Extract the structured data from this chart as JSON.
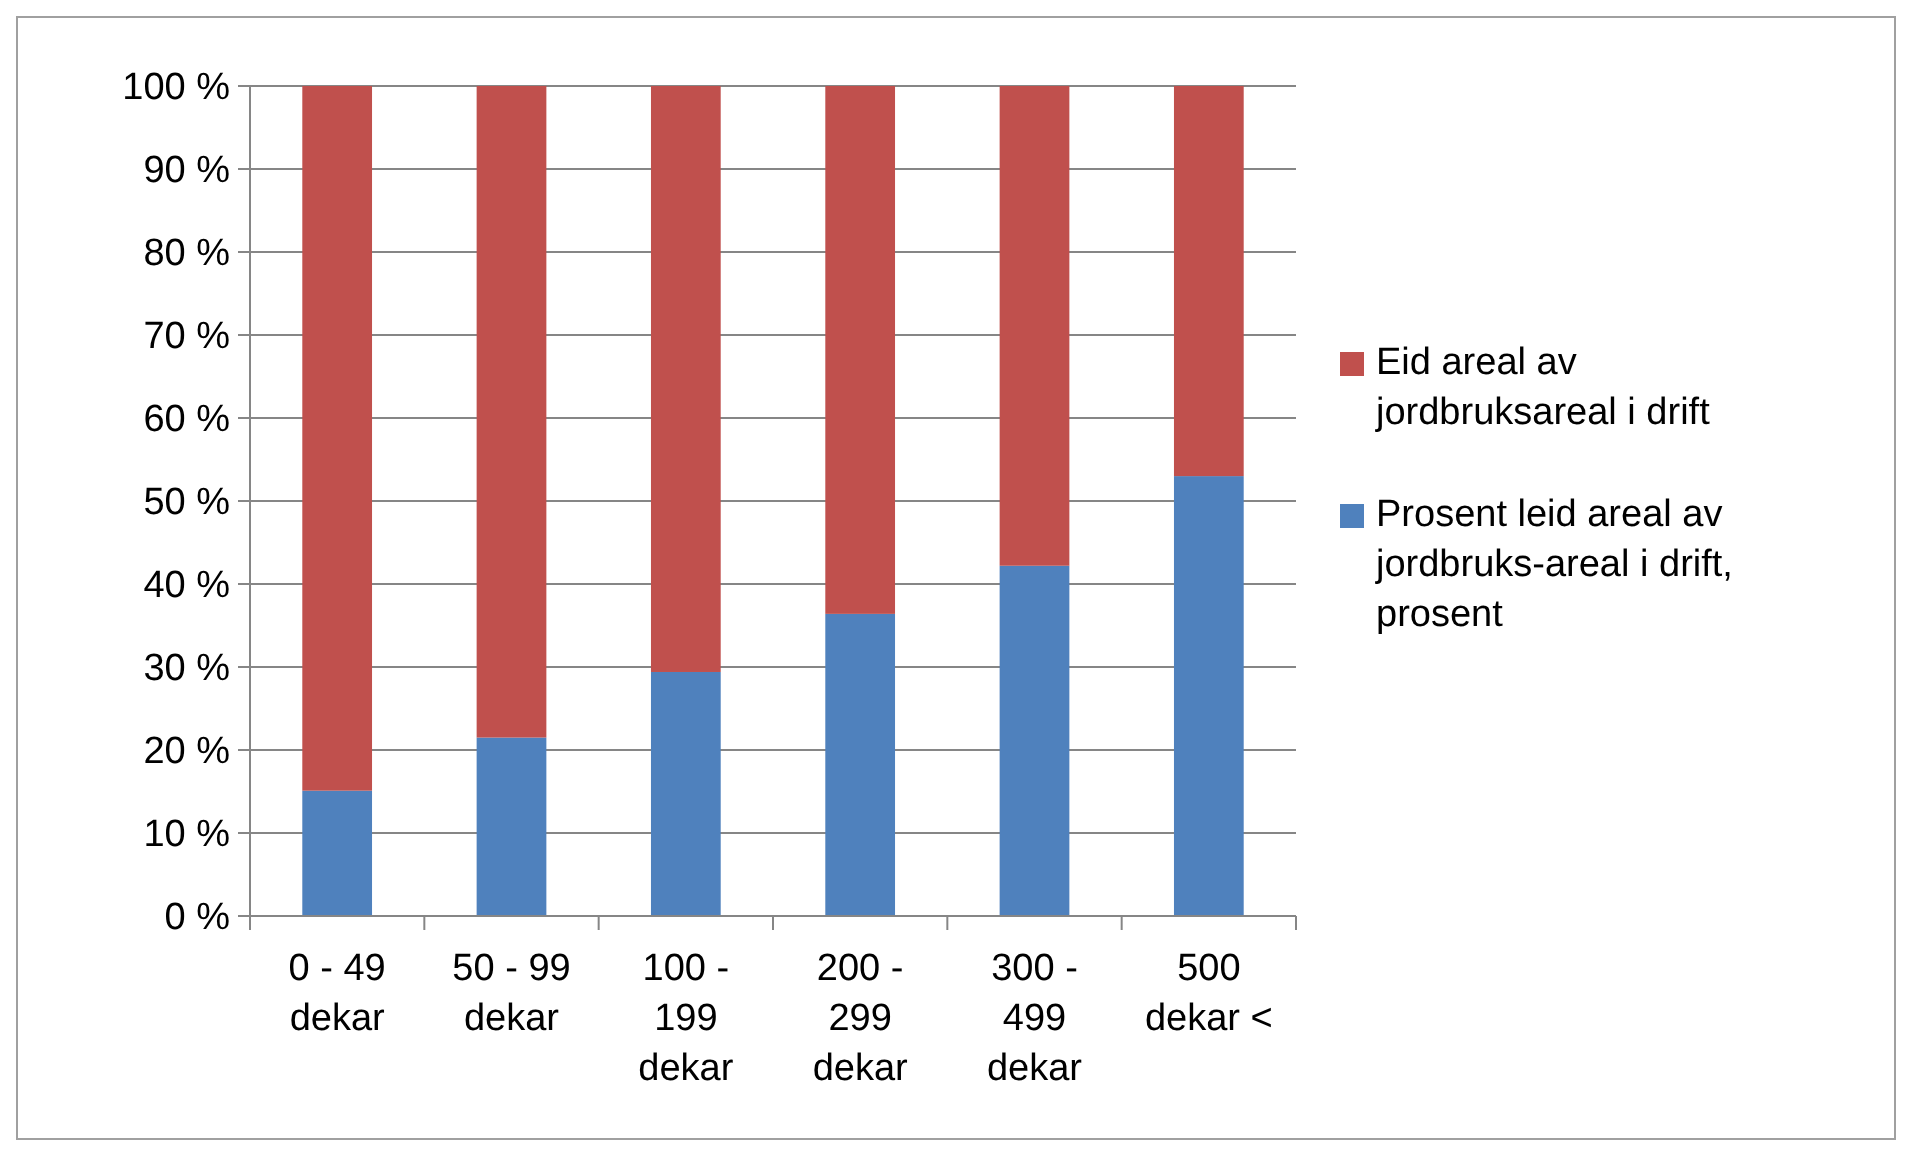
{
  "chart_data": {
    "type": "bar",
    "stacked": true,
    "categories": [
      "0 - 49 dekar",
      "50 - 99 dekar",
      "100 - 199 dekar",
      "200 - 299 dekar",
      "300 - 499 dekar",
      "500 dekar <"
    ],
    "series": [
      {
        "name": "Prosent leid areal av jordbruks-areal i drift, prosent",
        "color": "#4f81bd",
        "values": [
          15.1,
          21.5,
          29.4,
          36.4,
          42.2,
          53.0
        ]
      },
      {
        "name": "Eid areal av jordbruksareal i drift",
        "color": "#c0504d",
        "values": [
          84.9,
          78.5,
          70.6,
          63.6,
          57.8,
          47.0
        ]
      }
    ],
    "ylim": [
      0,
      100
    ],
    "yticks": [
      {
        "value": 0,
        "label": "0 %"
      },
      {
        "value": 10,
        "label": "10 %"
      },
      {
        "value": 20,
        "label": "20 %"
      },
      {
        "value": 30,
        "label": "30 %"
      },
      {
        "value": 40,
        "label": "40 %"
      },
      {
        "value": 50,
        "label": "50 %"
      },
      {
        "value": 60,
        "label": "60 %"
      },
      {
        "value": 70,
        "label": "70 %"
      },
      {
        "value": 80,
        "label": "80 %"
      },
      {
        "value": 90,
        "label": "90 %"
      },
      {
        "value": 100,
        "label": "100 %"
      }
    ],
    "grid": "y",
    "legend": "right"
  }
}
